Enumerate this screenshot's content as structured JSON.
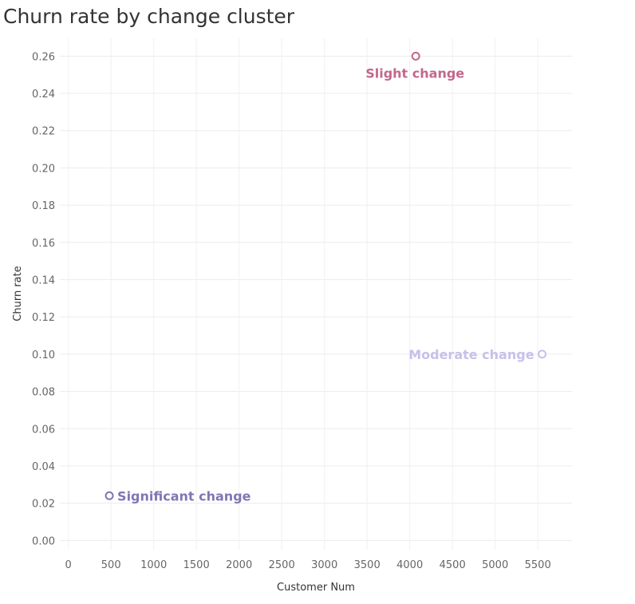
{
  "chart_data": {
    "type": "scatter",
    "title": "Churn rate by change cluster",
    "xlabel": "Customer Num",
    "ylabel": "Churn rate",
    "xlim": [
      -100,
      5900
    ],
    "ylim": [
      -0.005,
      0.27
    ],
    "xticks": [
      0,
      500,
      1000,
      1500,
      2000,
      2500,
      3000,
      3500,
      4000,
      4500,
      5000,
      5500
    ],
    "yticks": [
      "0.00",
      "0.02",
      "0.04",
      "0.06",
      "0.08",
      "0.10",
      "0.12",
      "0.14",
      "0.16",
      "0.18",
      "0.20",
      "0.22",
      "0.24",
      "0.26"
    ],
    "grid": true,
    "points": [
      {
        "label": "Slight change",
        "x": 4070,
        "y": 0.26,
        "color": "#c4668b",
        "label_pos": "below"
      },
      {
        "label": "Moderate change",
        "x": 5550,
        "y": 0.1,
        "color": "#c6c1ea",
        "label_pos": "left"
      },
      {
        "label": "Significant change",
        "x": 480,
        "y": 0.024,
        "color": "#7f76b3",
        "label_pos": "right"
      }
    ]
  }
}
